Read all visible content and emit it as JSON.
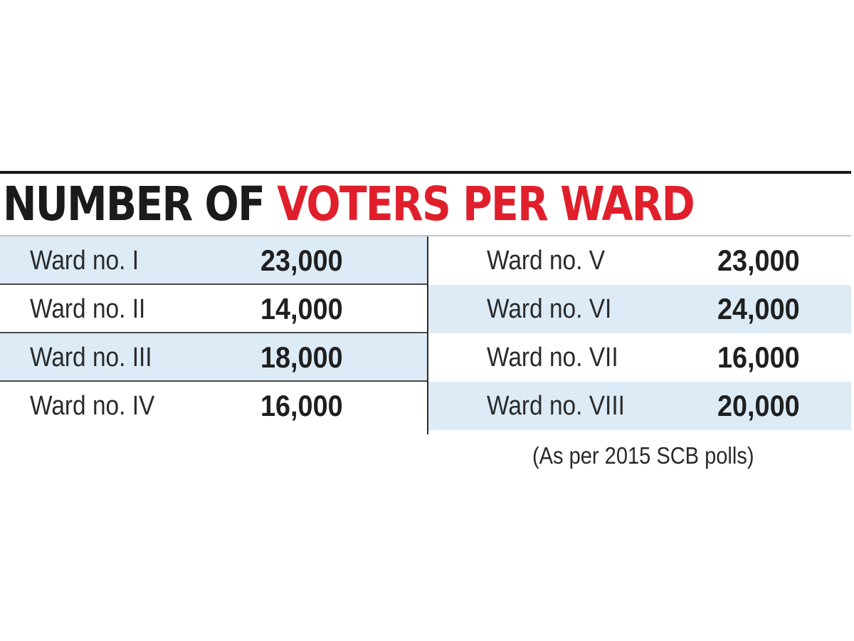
{
  "title": {
    "part1": "NUMBER OF ",
    "part2": "VOTERS PER WARD",
    "color_dark": "#1b1b1b",
    "color_red": "#e01f2b"
  },
  "colors": {
    "row_shade": "#dcebf6",
    "text": "#2a2a2a"
  },
  "footnote": "(As per 2015 SCB polls)",
  "chart_data": {
    "type": "table",
    "title": "NUMBER OF VOTERS PER WARD",
    "categories": [
      "Ward no. I",
      "Ward no. II",
      "Ward no. III",
      "Ward no. IV",
      "Ward no. V",
      "Ward no. VI",
      "Ward no. VII",
      "Ward no. VIII"
    ],
    "values": [
      23000,
      14000,
      18000,
      16000,
      23000,
      24000,
      16000,
      20000
    ],
    "value_labels": [
      "23,000",
      "14,000",
      "18,000",
      "16,000",
      "23,000",
      "24,000",
      "16,000",
      "20,000"
    ],
    "note": "(As per 2015 SCB polls)"
  }
}
